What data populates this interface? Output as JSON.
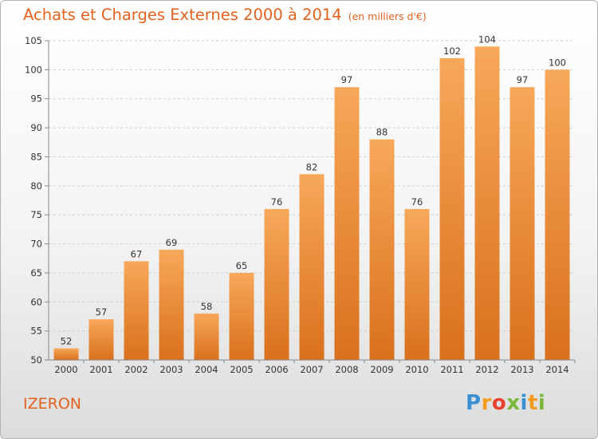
{
  "header": {
    "title": "Achats et Charges Externes 2000 à 2014",
    "unit": "(en milliers d'€)"
  },
  "footer": {
    "commune": "IZERON",
    "logo_text": "Proxiti",
    "logo_icon": "proxiti-logo"
  },
  "colors": {
    "accent": "#e0621e",
    "bar_top": "#f7a85a",
    "bar_bottom": "#d9701c",
    "grid": "#d0d0d0",
    "axis": "#888888",
    "text": "#333333"
  },
  "chart_data": {
    "type": "bar",
    "title": "Achats et Charges Externes 2000 à 2014",
    "subtitle": "(en milliers d'€)",
    "categories": [
      "2000",
      "2001",
      "2002",
      "2003",
      "2004",
      "2005",
      "2006",
      "2007",
      "2008",
      "2009",
      "2010",
      "2011",
      "2012",
      "2013",
      "2014"
    ],
    "values": [
      52,
      57,
      67,
      69,
      58,
      65,
      76,
      82,
      97,
      88,
      76,
      102,
      104,
      97,
      100
    ],
    "ylim": [
      50,
      105
    ],
    "yticks": [
      50,
      55,
      60,
      65,
      70,
      75,
      80,
      85,
      90,
      95,
      100,
      105
    ],
    "grid": true,
    "data_labels": true,
    "xlabel": "",
    "ylabel": ""
  }
}
